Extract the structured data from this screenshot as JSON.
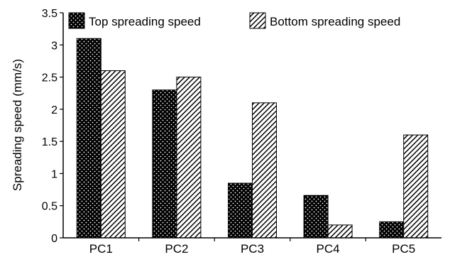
{
  "chart_data": {
    "type": "bar",
    "title": "",
    "xlabel": "",
    "ylabel": "Spreading speed (mm/s)",
    "ylim": [
      0,
      3.5
    ],
    "yticks": [
      "0",
      "0.5",
      "1",
      "1.5",
      "2",
      "2.5",
      "3",
      "3.5"
    ],
    "categories": [
      "PC1",
      "PC2",
      "PC3",
      "PC4",
      "PC5"
    ],
    "series": [
      {
        "name": "Top spreading speed",
        "values": [
          3.1,
          2.3,
          0.85,
          0.66,
          0.25
        ],
        "pattern": "dots"
      },
      {
        "name": "Bottom spreading speed",
        "values": [
          2.6,
          2.5,
          2.1,
          0.2,
          1.6
        ],
        "pattern": "hatch"
      }
    ],
    "grid": false,
    "legend_position": "top"
  }
}
